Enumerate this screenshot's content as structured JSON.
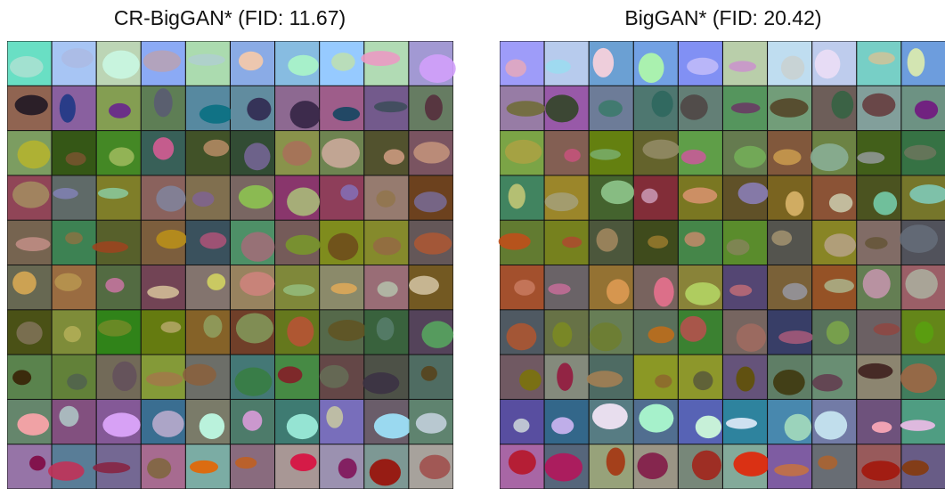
{
  "panels": [
    {
      "title": "CR-BigGAN* (FID: 11.67)"
    },
    {
      "title": "BigGAN* (FID: 20.42)"
    }
  ]
}
